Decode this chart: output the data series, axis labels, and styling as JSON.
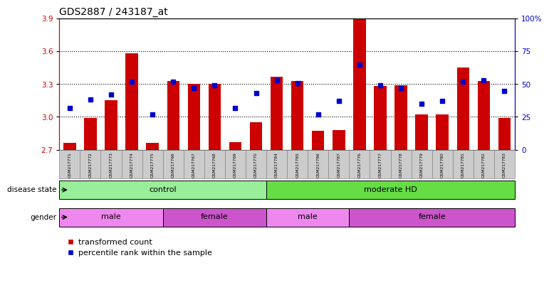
{
  "title": "GDS2887 / 243187_at",
  "samples": [
    "GSM217771",
    "GSM217772",
    "GSM217773",
    "GSM217774",
    "GSM217775",
    "GSM217766",
    "GSM217767",
    "GSM217768",
    "GSM217769",
    "GSM217770",
    "GSM217784",
    "GSM217785",
    "GSM217786",
    "GSM217787",
    "GSM217776",
    "GSM217777",
    "GSM217778",
    "GSM217779",
    "GSM217780",
    "GSM217781",
    "GSM217782",
    "GSM217783"
  ],
  "transformed_count": [
    2.76,
    2.99,
    3.15,
    3.58,
    2.76,
    3.33,
    3.3,
    3.3,
    2.77,
    2.95,
    3.37,
    3.33,
    2.87,
    2.88,
    3.9,
    3.28,
    3.29,
    3.02,
    3.02,
    3.45,
    3.33,
    2.99
  ],
  "percentile_rank": [
    32,
    38,
    42,
    52,
    27,
    52,
    47,
    49,
    32,
    43,
    53,
    51,
    27,
    37,
    65,
    49,
    47,
    35,
    37,
    52,
    53,
    45
  ],
  "ylim_left": [
    2.7,
    3.9
  ],
  "ylim_right": [
    0,
    100
  ],
  "yticks_left": [
    2.7,
    3.0,
    3.3,
    3.6,
    3.9
  ],
  "yticks_right": [
    0,
    25,
    50,
    75,
    100
  ],
  "bar_color": "#CC0000",
  "square_color": "#0000CC",
  "bar_width": 0.6,
  "groups": {
    "disease_state": [
      {
        "label": "control",
        "start": 0,
        "end": 9,
        "color": "#99EE99"
      },
      {
        "label": "moderate HD",
        "start": 10,
        "end": 21,
        "color": "#66DD44"
      }
    ],
    "gender": [
      {
        "label": "male",
        "start": 0,
        "end": 4,
        "color": "#EE88EE"
      },
      {
        "label": "female",
        "start": 5,
        "end": 9,
        "color": "#CC55CC"
      },
      {
        "label": "male",
        "start": 10,
        "end": 13,
        "color": "#EE88EE"
      },
      {
        "label": "female",
        "start": 14,
        "end": 21,
        "color": "#CC55CC"
      }
    ]
  },
  "legend": [
    {
      "label": "transformed count",
      "color": "#CC0000"
    },
    {
      "label": "percentile rank within the sample",
      "color": "#0000CC"
    }
  ],
  "grid_lines": [
    3.0,
    3.3,
    3.6
  ]
}
